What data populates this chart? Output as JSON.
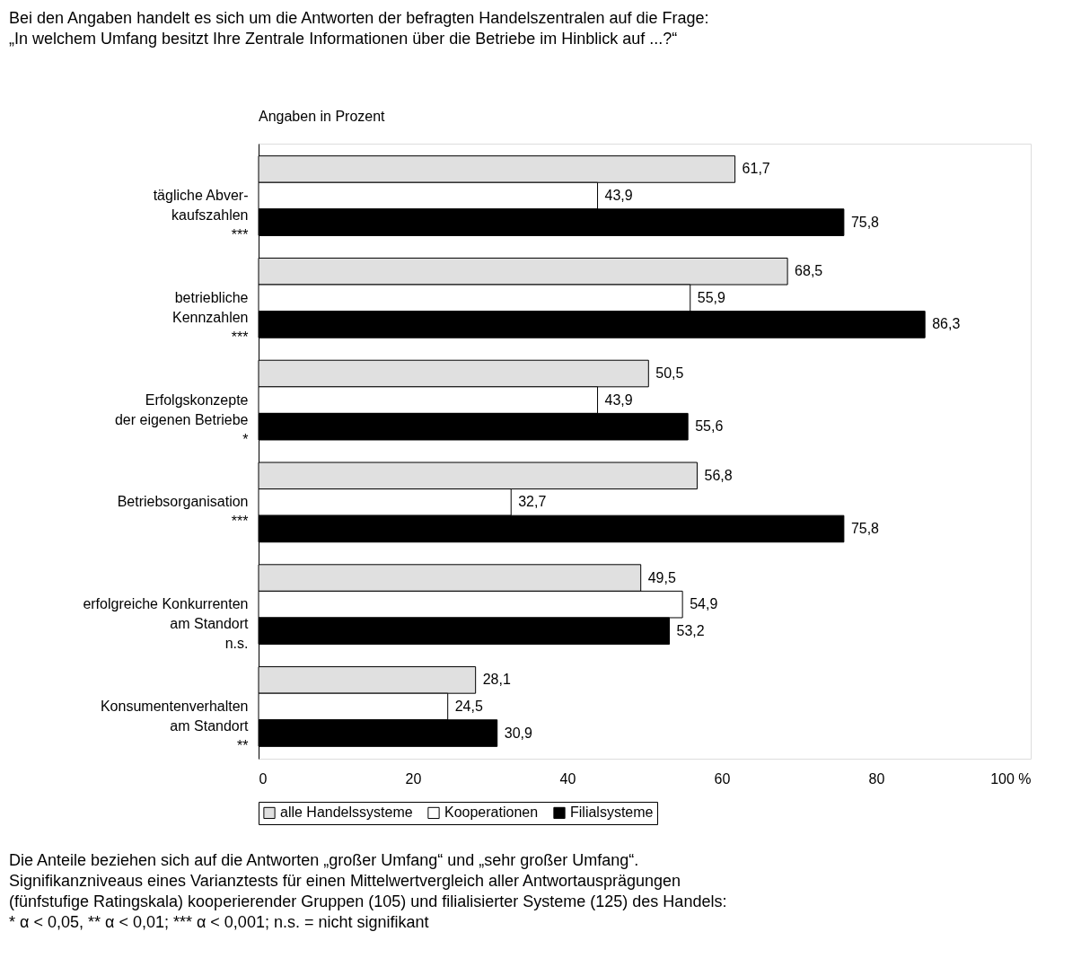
{
  "chart_data": {
    "type": "bar",
    "orientation": "horizontal",
    "title": [
      "Bei den Angaben handelt es sich um die Antworten der befragten Handelszentralen auf die Frage:",
      "„In welchem Umfang besitzt Ihre Zentrale Informationen über die Betriebe im Hinblick auf ...?“"
    ],
    "xlabel": "Angaben in Prozent",
    "categories": [
      "tägliche Abver-\nkaufszahlen\n***",
      "betriebliche\nKennzahlen\n***",
      "Erfolgskonzepte\nder eigenen Betriebe\n*",
      "Betriebsorganisation\n***",
      "erfolgreiche Konkurrenten\nam Standort\nn.s.",
      "Konsumentenverhalten\nam Standort\n**"
    ],
    "series": [
      {
        "name": "alle Handelssysteme",
        "color": "#e0e0e0",
        "values": [
          61.7,
          68.5,
          50.5,
          56.8,
          49.5,
          28.1
        ],
        "value_labels": [
          "61,7",
          "68,5",
          "50,5",
          "56,8",
          "49,5",
          "28,1"
        ]
      },
      {
        "name": "Kooperationen",
        "color": "#ffffff",
        "values": [
          43.9,
          55.9,
          43.9,
          32.7,
          54.9,
          24.5
        ],
        "value_labels": [
          "43,9",
          "55,9",
          "43,9",
          "32,7",
          "54,9",
          "24,5"
        ]
      },
      {
        "name": "Filialsysteme",
        "color": "#000000",
        "values": [
          75.8,
          86.3,
          55.6,
          75.8,
          53.2,
          30.9
        ],
        "value_labels": [
          "75,8",
          "86,3",
          "55,6",
          "75,8",
          "53,2",
          "30,9"
        ]
      }
    ],
    "xlim": [
      0,
      100
    ],
    "xticks": [
      0,
      20,
      40,
      60,
      80,
      {
        "value": 100,
        "label": "100 %"
      }
    ],
    "grid": false,
    "legend": "bottom",
    "annotations": [
      "Die Anteile beziehen sich auf die Antworten „großer Umfang“ und „sehr großer Umfang“.",
      "Signifikanzniveaus eines Varianztests für einen Mittelwertvergleich aller Antwortausprägungen",
      "(fünfstufige Ratingskala) kooperierender Gruppen (105) und filialisierter Systeme (125) des Handels:",
      "* α < 0,05, ** α < 0,01; *** α < 0,001; n.s. = nicht signifikant"
    ]
  }
}
